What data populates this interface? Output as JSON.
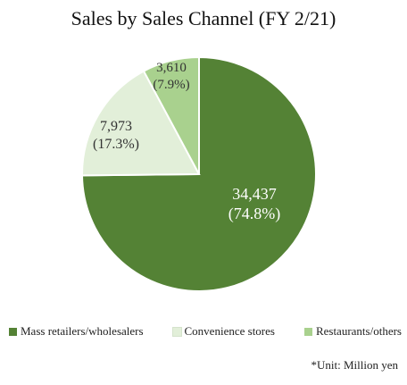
{
  "chart_data": {
    "type": "pie",
    "title": "Sales by Sales Channel (FY 2/21)",
    "unit_note": "*Unit: Million yen",
    "legend_position": "bottom",
    "slices": [
      {
        "label": "Mass retailers/wholesalers",
        "value": 34437,
        "value_label": "34,437",
        "percent_label": "(74.8%)",
        "color": "#548235",
        "label_color": "#ffffff"
      },
      {
        "label": "Convenience stores",
        "value": 7973,
        "value_label": "7,973",
        "percent_label": "(17.3%)",
        "color": "#e2efd9",
        "label_color": "#333333"
      },
      {
        "label": "Restaurants/others",
        "value": 3610,
        "value_label": "3,610",
        "percent_label": "(7.9%)",
        "color": "#a9d18e",
        "label_color": "#333333"
      }
    ]
  }
}
